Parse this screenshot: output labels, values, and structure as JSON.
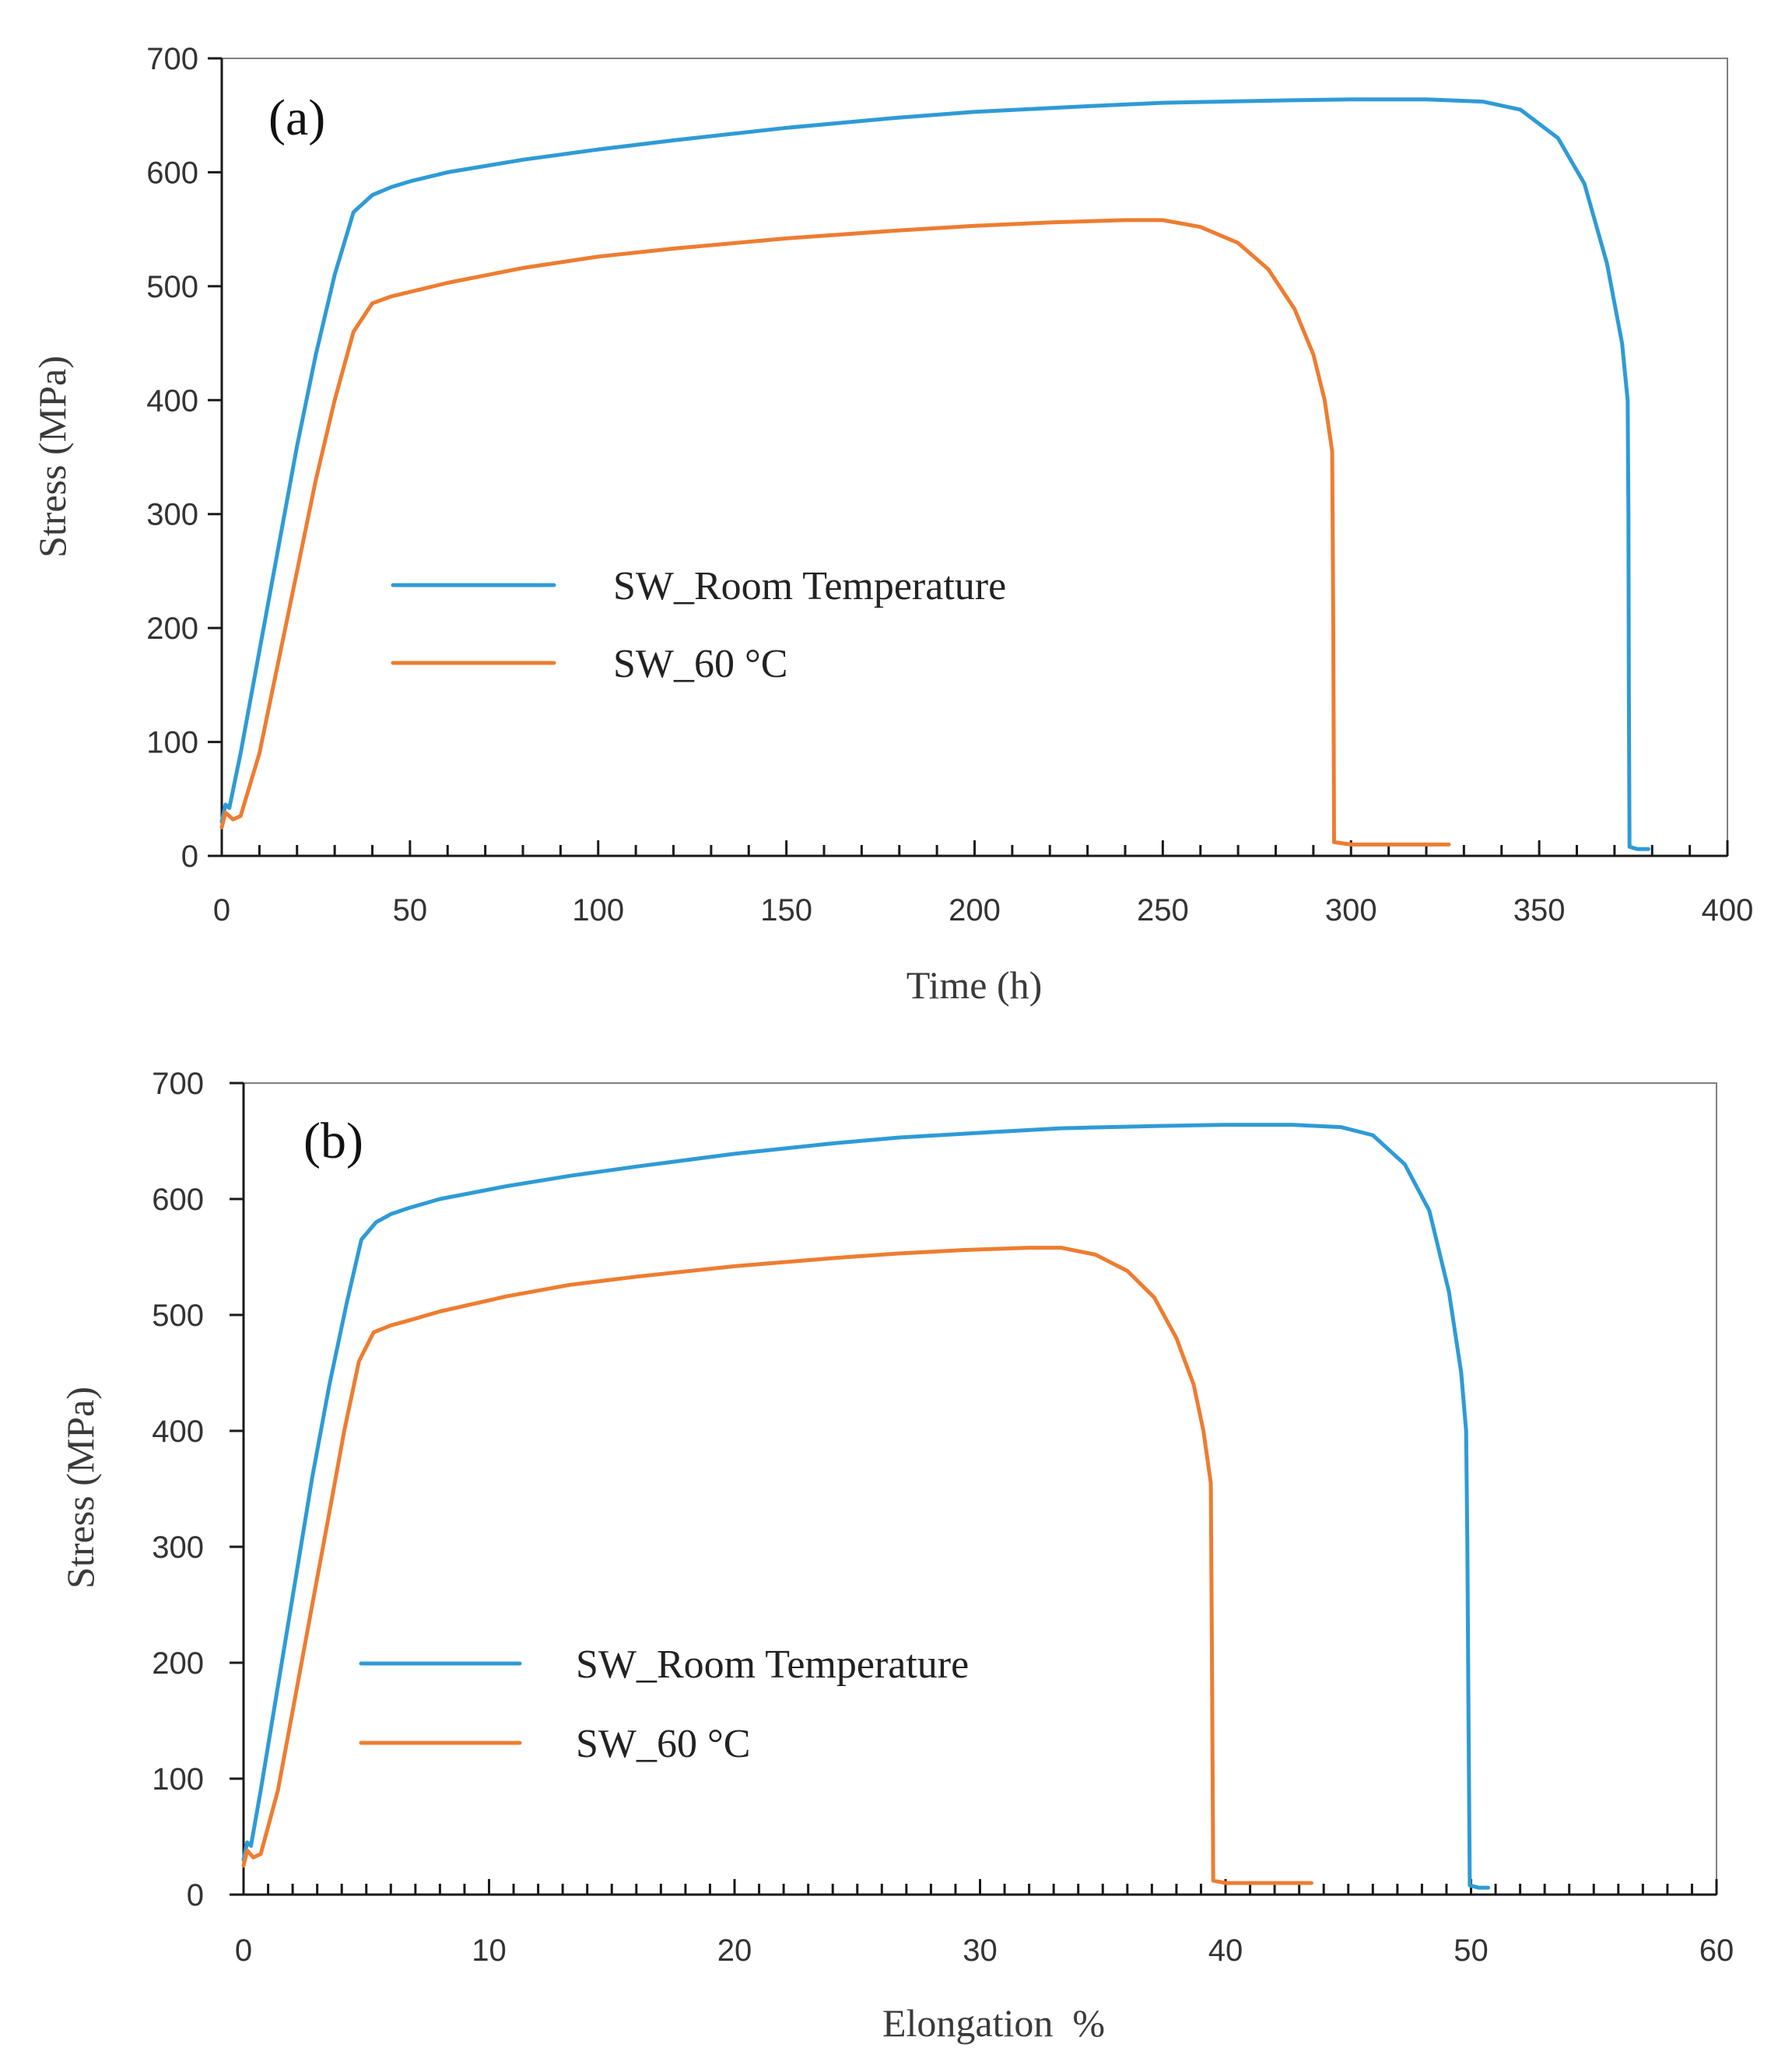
{
  "chart_data": [
    {
      "type": "line",
      "panel_label": "(a)",
      "xlabel": "Time (h)",
      "ylabel": "Stress (MPa)",
      "xlim": [
        0,
        400
      ],
      "ylim": [
        0,
        700
      ],
      "xticks": [
        0,
        50,
        100,
        150,
        200,
        250,
        300,
        350,
        400
      ],
      "yticks": [
        0,
        100,
        200,
        300,
        400,
        500,
        600,
        700
      ],
      "x_minor_step": 10,
      "legend_position": "center-left",
      "series": [
        {
          "name": "SW_Room Temperature",
          "color": "#2e9bd6",
          "points": [
            [
              0,
              30
            ],
            [
              1,
              45
            ],
            [
              2,
              42
            ],
            [
              5,
              90
            ],
            [
              10,
              180
            ],
            [
              15,
              270
            ],
            [
              20,
              360
            ],
            [
              25,
              440
            ],
            [
              30,
              510
            ],
            [
              35,
              565
            ],
            [
              40,
              580
            ],
            [
              45,
              587
            ],
            [
              50,
              592
            ],
            [
              60,
              600
            ],
            [
              80,
              611
            ],
            [
              100,
              620
            ],
            [
              120,
              628
            ],
            [
              150,
              639
            ],
            [
              180,
              648
            ],
            [
              200,
              653
            ],
            [
              230,
              658
            ],
            [
              250,
              661
            ],
            [
              280,
              663
            ],
            [
              300,
              664
            ],
            [
              320,
              664
            ],
            [
              335,
              662
            ],
            [
              345,
              655
            ],
            [
              355,
              630
            ],
            [
              362,
              590
            ],
            [
              368,
              520
            ],
            [
              372,
              450
            ],
            [
              373.5,
              400
            ],
            [
              373.7,
              300
            ],
            [
              373.8,
              150
            ],
            [
              374,
              8
            ],
            [
              376,
              6
            ],
            [
              379,
              6
            ]
          ]
        },
        {
          "name": "SW_60 °C",
          "color": "#ed7d31",
          "points": [
            [
              0,
              25
            ],
            [
              1,
              38
            ],
            [
              3,
              32
            ],
            [
              5,
              35
            ],
            [
              10,
              90
            ],
            [
              15,
              170
            ],
            [
              20,
              250
            ],
            [
              25,
              330
            ],
            [
              30,
              400
            ],
            [
              35,
              460
            ],
            [
              40,
              485
            ],
            [
              45,
              491
            ],
            [
              50,
              495
            ],
            [
              60,
              503
            ],
            [
              80,
              516
            ],
            [
              100,
              526
            ],
            [
              120,
              533
            ],
            [
              150,
              542
            ],
            [
              180,
              549
            ],
            [
              200,
              553
            ],
            [
              220,
              556
            ],
            [
              240,
              558
            ],
            [
              250,
              558
            ],
            [
              260,
              552
            ],
            [
              270,
              538
            ],
            [
              278,
              515
            ],
            [
              285,
              480
            ],
            [
              290,
              440
            ],
            [
              293,
              400
            ],
            [
              295,
              355
            ],
            [
              295.3,
              200
            ],
            [
              295.5,
              12
            ],
            [
              300,
              10
            ],
            [
              310,
              10
            ],
            [
              326,
              10
            ]
          ]
        }
      ]
    },
    {
      "type": "line",
      "panel_label": "(b)",
      "xlabel": "Elongation  %",
      "ylabel": "Stress (MPa)",
      "xlim": [
        0,
        60
      ],
      "ylim": [
        0,
        700
      ],
      "xticks": [
        0,
        10,
        20,
        30,
        40,
        50,
        60
      ],
      "yticks": [
        0,
        100,
        200,
        300,
        400,
        500,
        600,
        700
      ],
      "x_minor_step": 1,
      "legend_position": "center-left",
      "series": [
        {
          "name": "SW_Room Temperature",
          "color": "#2e9bd6",
          "points": [
            [
              0,
              30
            ],
            [
              0.15,
              45
            ],
            [
              0.3,
              42
            ],
            [
              0.7,
              90
            ],
            [
              1.4,
              180
            ],
            [
              2.1,
              270
            ],
            [
              2.8,
              360
            ],
            [
              3.5,
              440
            ],
            [
              4.2,
              510
            ],
            [
              4.8,
              565
            ],
            [
              5.4,
              580
            ],
            [
              6,
              587
            ],
            [
              6.7,
              592
            ],
            [
              8,
              600
            ],
            [
              10.7,
              611
            ],
            [
              13.3,
              620
            ],
            [
              16,
              628
            ],
            [
              20,
              639
            ],
            [
              24,
              648
            ],
            [
              26.7,
              653
            ],
            [
              30.7,
              658
            ],
            [
              33.3,
              661
            ],
            [
              37.3,
              663
            ],
            [
              40,
              664
            ],
            [
              42.7,
              664
            ],
            [
              44.7,
              662
            ],
            [
              46,
              655
            ],
            [
              47.3,
              630
            ],
            [
              48.3,
              590
            ],
            [
              49.1,
              520
            ],
            [
              49.6,
              450
            ],
            [
              49.8,
              400
            ],
            [
              49.85,
              300
            ],
            [
              49.9,
              150
            ],
            [
              49.95,
              8
            ],
            [
              50.3,
              6
            ],
            [
              50.7,
              6
            ]
          ]
        },
        {
          "name": "SW_60 °C",
          "color": "#ed7d31",
          "points": [
            [
              0,
              25
            ],
            [
              0.15,
              38
            ],
            [
              0.4,
              32
            ],
            [
              0.7,
              35
            ],
            [
              1.4,
              90
            ],
            [
              2.1,
              170
            ],
            [
              2.8,
              250
            ],
            [
              3.5,
              330
            ],
            [
              4.1,
              400
            ],
            [
              4.7,
              460
            ],
            [
              5.3,
              485
            ],
            [
              6,
              491
            ],
            [
              6.7,
              495
            ],
            [
              8,
              503
            ],
            [
              10.7,
              516
            ],
            [
              13.3,
              526
            ],
            [
              16,
              533
            ],
            [
              20,
              542
            ],
            [
              24,
              549
            ],
            [
              26.7,
              553
            ],
            [
              29.3,
              556
            ],
            [
              32,
              558
            ],
            [
              33.3,
              558
            ],
            [
              34.7,
              552
            ],
            [
              36,
              538
            ],
            [
              37.1,
              515
            ],
            [
              38,
              480
            ],
            [
              38.7,
              440
            ],
            [
              39.1,
              400
            ],
            [
              39.4,
              355
            ],
            [
              39.45,
              200
            ],
            [
              39.5,
              12
            ],
            [
              40,
              10
            ],
            [
              41.3,
              10
            ],
            [
              43.5,
              10
            ]
          ]
        }
      ]
    }
  ]
}
